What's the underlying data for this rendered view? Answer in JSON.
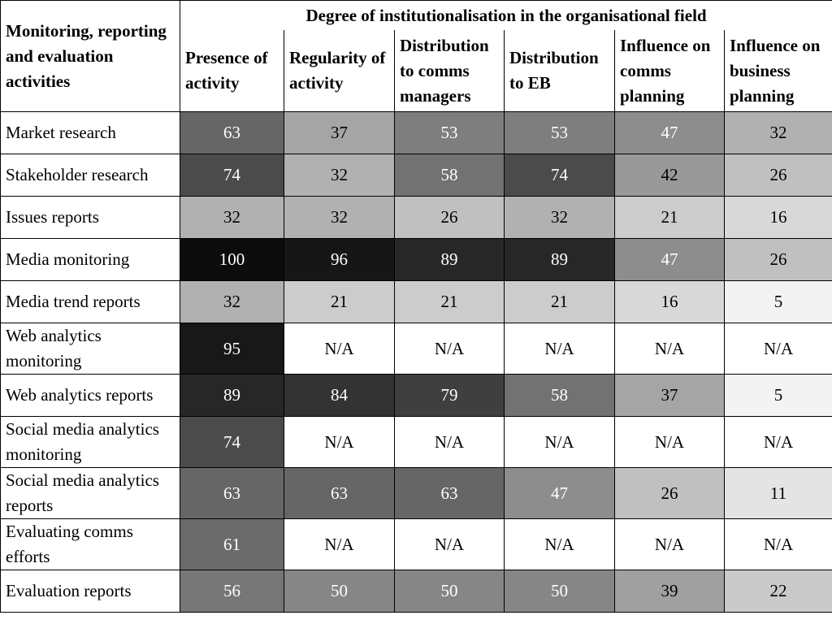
{
  "chart_data": {
    "type": "heatmap",
    "title": "",
    "corner_label": "Monitoring, reporting and evaluation activities",
    "column_group": "Degree of institutionalisation in the organisational field",
    "columns": [
      "Presence of activity",
      "Regularity of activity",
      "Distribution to comms managers",
      "Distribution to EB",
      "Influence on comms planning",
      "Influence on business planning"
    ],
    "rows": [
      {
        "label": "Market research",
        "values": [
          "63",
          "37",
          "53",
          "53",
          "47",
          "32"
        ]
      },
      {
        "label": "Stakeholder research",
        "values": [
          "74",
          "32",
          "58",
          "74",
          "42",
          "26"
        ]
      },
      {
        "label": "Issues reports",
        "values": [
          "32",
          "32",
          "26",
          "32",
          "21",
          "16"
        ]
      },
      {
        "label": "Media monitoring",
        "values": [
          "100",
          "96",
          "89",
          "89",
          "47",
          "26"
        ]
      },
      {
        "label": "Media trend reports",
        "values": [
          "32",
          "21",
          "21",
          "21",
          "16",
          "5"
        ]
      },
      {
        "label": "Web analytics monitoring",
        "values": [
          "95",
          "N/A",
          "N/A",
          "N/A",
          "N/A",
          "N/A"
        ]
      },
      {
        "label": "Web analytics reports",
        "values": [
          "89",
          "84",
          "79",
          "58",
          "37",
          "5"
        ]
      },
      {
        "label": "Social media analytics monitoring",
        "values": [
          "74",
          "N/A",
          "N/A",
          "N/A",
          "N/A",
          "N/A"
        ]
      },
      {
        "label": "Social media analytics reports",
        "values": [
          "63",
          "63",
          "63",
          "47",
          "26",
          "11"
        ]
      },
      {
        "label": "Evaluating comms efforts",
        "values": [
          "61",
          "N/A",
          "N/A",
          "N/A",
          "N/A",
          "N/A"
        ]
      },
      {
        "label": "Evaluation reports",
        "values": [
          "56",
          "50",
          "50",
          "50",
          "39",
          "22"
        ]
      }
    ]
  }
}
